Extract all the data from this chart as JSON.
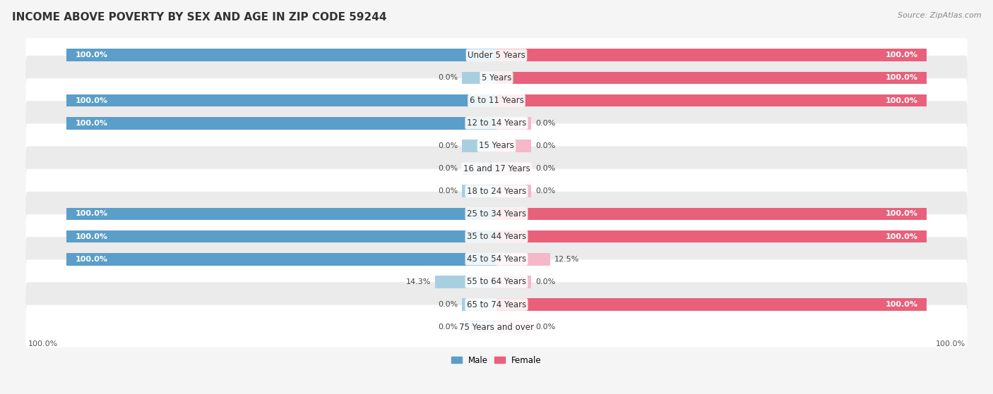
{
  "title": "INCOME ABOVE POVERTY BY SEX AND AGE IN ZIP CODE 59244",
  "source": "Source: ZipAtlas.com",
  "categories": [
    "Under 5 Years",
    "5 Years",
    "6 to 11 Years",
    "12 to 14 Years",
    "15 Years",
    "16 and 17 Years",
    "18 to 24 Years",
    "25 to 34 Years",
    "35 to 44 Years",
    "45 to 54 Years",
    "55 to 64 Years",
    "65 to 74 Years",
    "75 Years and over"
  ],
  "male_values": [
    100.0,
    0.0,
    100.0,
    100.0,
    0.0,
    0.0,
    0.0,
    100.0,
    100.0,
    100.0,
    14.3,
    0.0,
    0.0
  ],
  "female_values": [
    100.0,
    100.0,
    100.0,
    0.0,
    0.0,
    0.0,
    0.0,
    100.0,
    100.0,
    12.5,
    0.0,
    100.0,
    0.0
  ],
  "male_color_full": "#5b9ec9",
  "male_color_stub": "#a8cfe0",
  "female_color_full": "#e8607a",
  "female_color_stub": "#f4b8c8",
  "male_label": "Male",
  "female_label": "Female",
  "bg_color": "#f5f5f5",
  "row_color_odd": "#ffffff",
  "row_color_even": "#ebebeb",
  "max_val": 100.0,
  "title_fontsize": 11,
  "label_fontsize": 8.5,
  "value_fontsize": 8,
  "source_fontsize": 8
}
